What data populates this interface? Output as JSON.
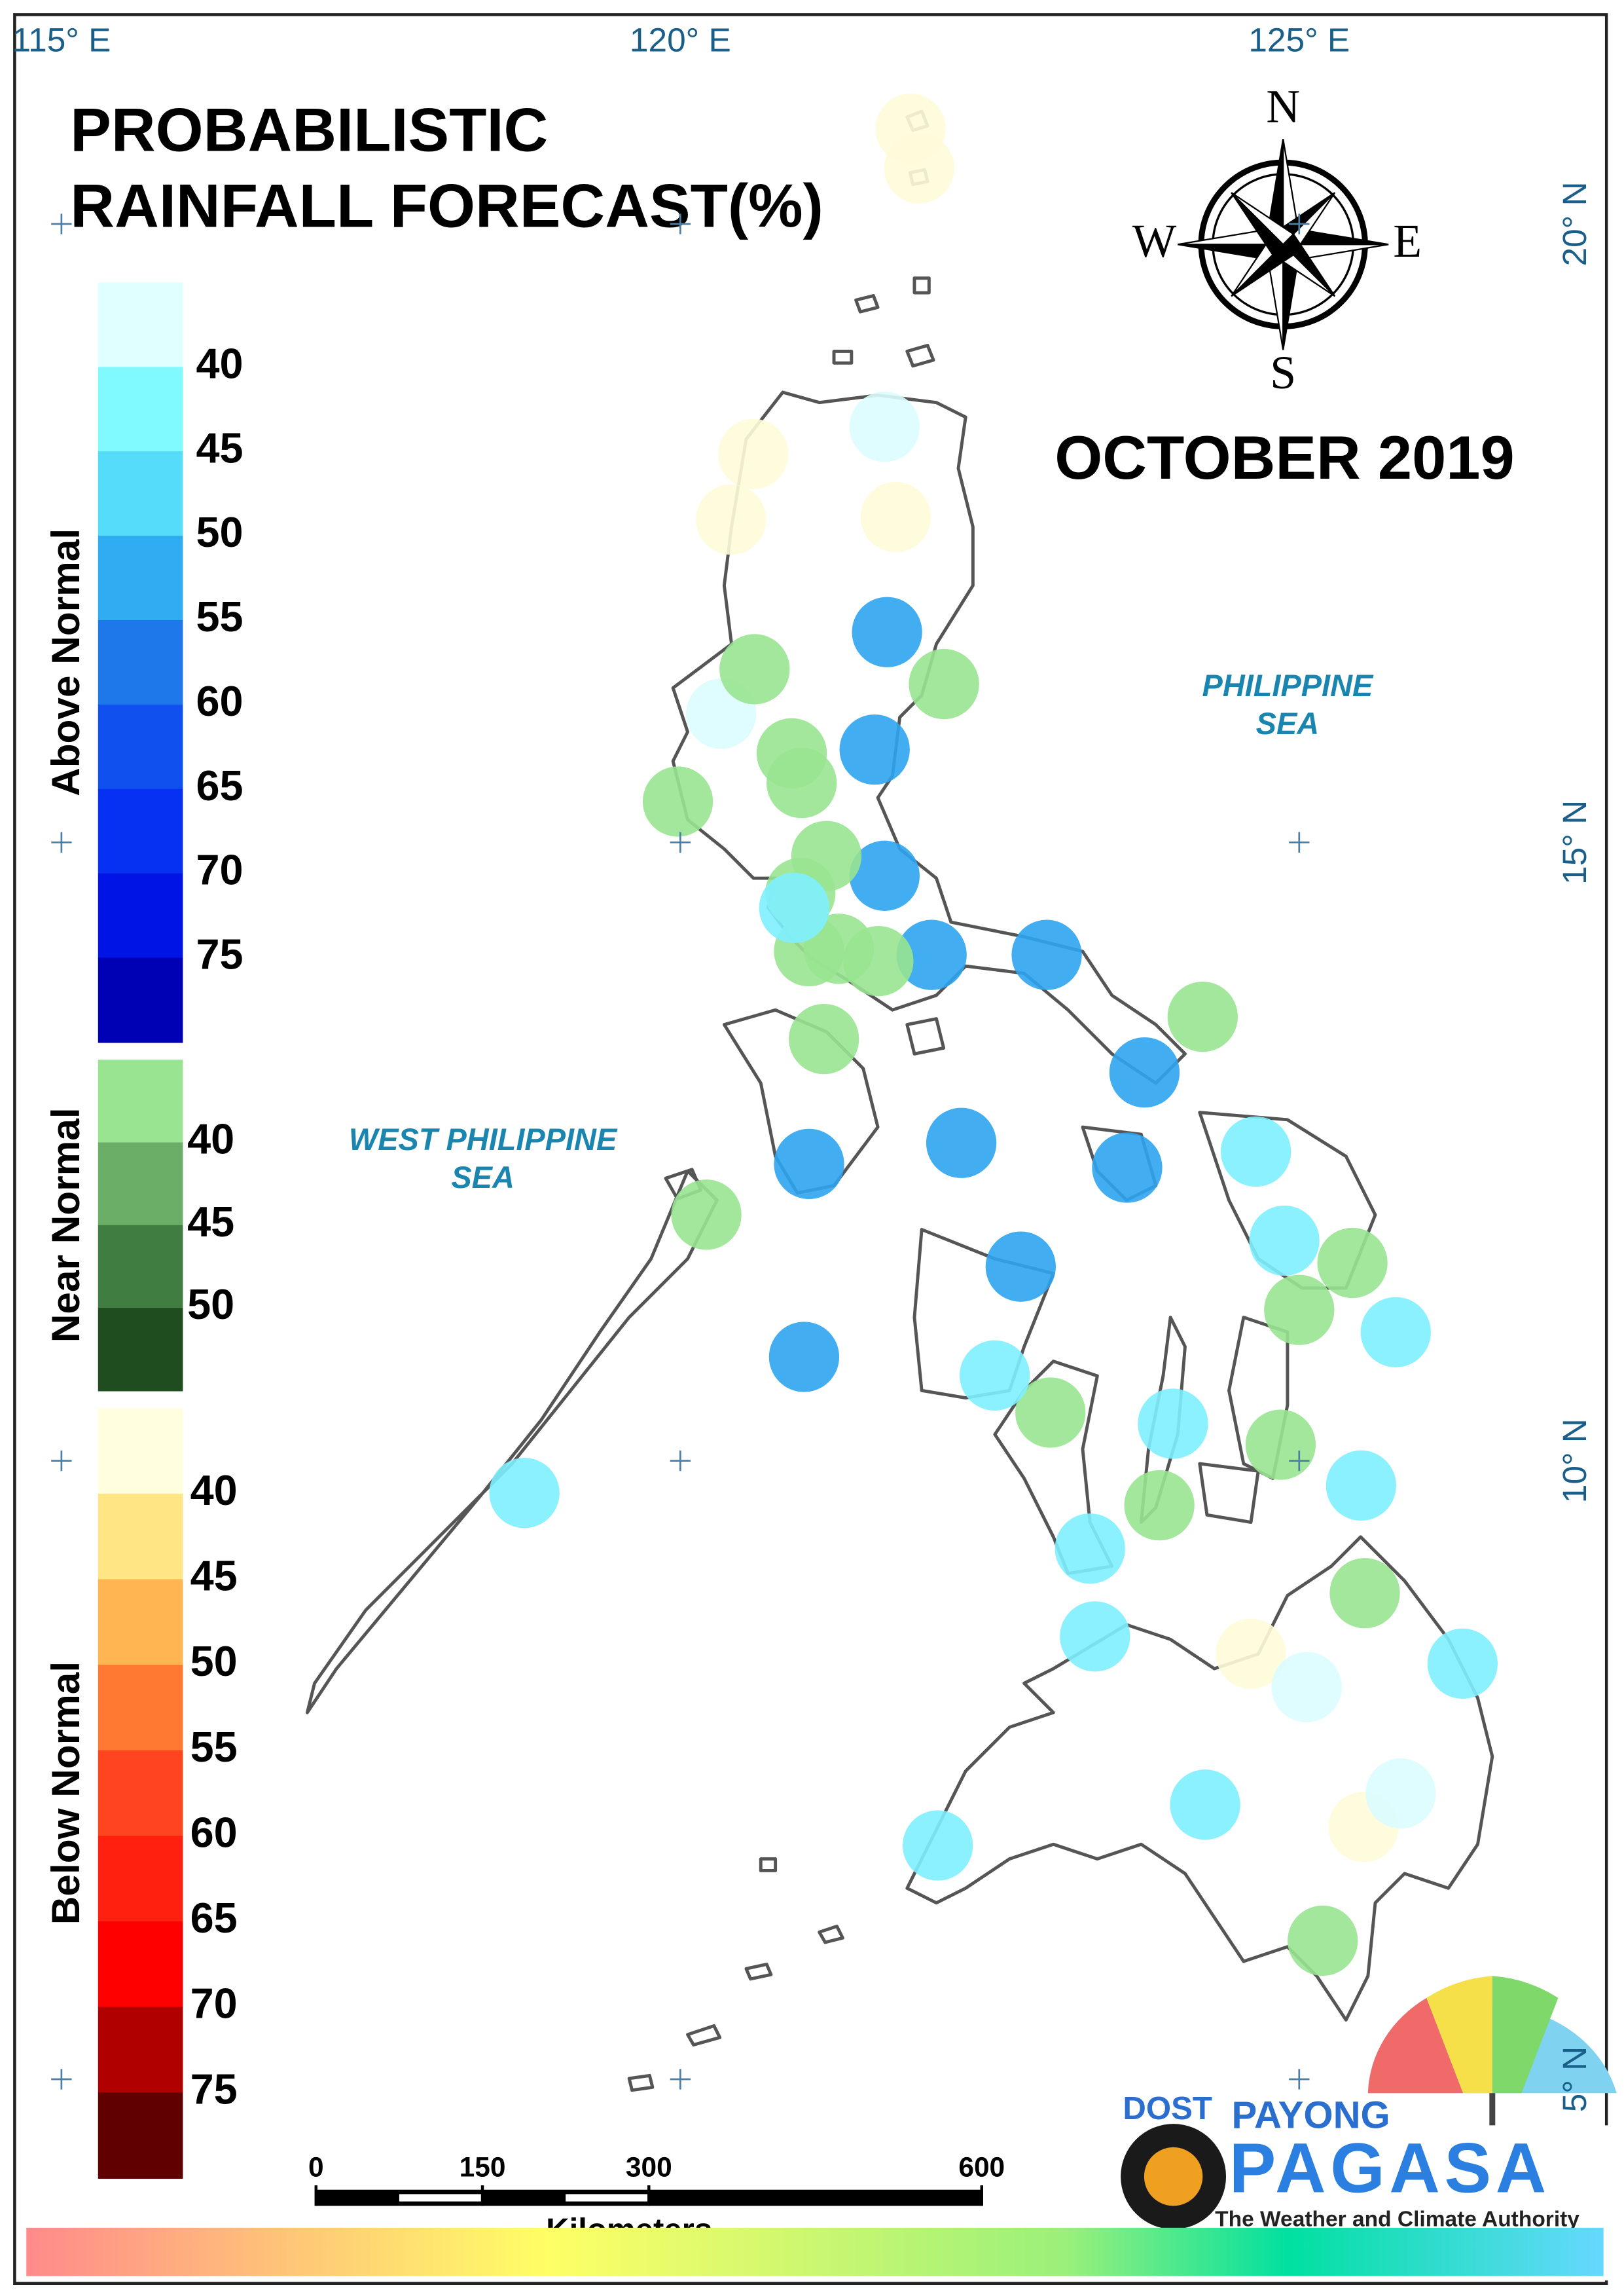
{
  "title": [
    "PROBABILISTIC",
    "RAINFALL FORECAST(%)"
  ],
  "period": "OCTOBER  2019",
  "compass": [
    "N",
    "E",
    "S",
    "W"
  ],
  "seas": [
    {
      "lines": [
        "PHILIPPINE",
        "SEA"
      ]
    },
    {
      "lines": [
        "WEST PHILIPPINE",
        "SEA"
      ]
    }
  ],
  "map": {
    "lon_ticks": [
      {
        "value": 115,
        "label": "115° E"
      },
      {
        "value": 120,
        "label": "120° E"
      },
      {
        "value": 125,
        "label": "125° E"
      }
    ],
    "lat_ticks": [
      {
        "value": 20,
        "label": "20° N"
      },
      {
        "value": 15,
        "label": "15° N"
      },
      {
        "value": 10,
        "label": "10° N"
      },
      {
        "value": 5,
        "label": "5° N"
      }
    ]
  },
  "legend": [
    {
      "title": "Above Normal",
      "colors": [
        "#e0ffff",
        "#80faff",
        "#55dcfa",
        "#30acf2",
        "#1e78ea",
        "#1050ee",
        "#0630f2",
        "#0014e6",
        "#0000b4"
      ],
      "labels": [
        40,
        45,
        50,
        55,
        60,
        65,
        70,
        75
      ]
    },
    {
      "title": "Near Normal",
      "colors": [
        "#98e490",
        "#6aae68",
        "#3f7d40",
        "#1f4d20"
      ],
      "labels": [
        40,
        45,
        50
      ]
    },
    {
      "title": "Below Normal",
      "colors": [
        "#ffffe0",
        "#ffe584",
        "#ffb652",
        "#ff7a30",
        "#ff4420",
        "#ff2010",
        "#ff0000",
        "#b00000",
        "#600000"
      ],
      "labels": [
        40,
        45,
        50,
        55,
        60,
        65,
        70,
        75
      ]
    }
  ],
  "stations": [
    {
      "color": "#fffbd9",
      "points": [
        [
          121.86,
          20.77
        ],
        [
          121.93,
          20.45
        ],
        [
          120.59,
          18.14
        ],
        [
          120.41,
          17.61
        ],
        [
          121.74,
          17.63
        ],
        [
          124.61,
          8.44
        ],
        [
          125.52,
          7.04
        ]
      ]
    },
    {
      "color": "#dcfcff",
      "points": [
        [
          121.65,
          18.36
        ],
        [
          120.33,
          16.04
        ],
        [
          125.06,
          8.17
        ],
        [
          125.82,
          7.31
        ]
      ]
    },
    {
      "color": "#2ea4ee",
      "points": [
        [
          121.67,
          16.7
        ],
        [
          121.57,
          15.75
        ],
        [
          121.65,
          14.73
        ],
        [
          122.03,
          14.09
        ],
        [
          122.96,
          14.09
        ],
        [
          123.75,
          13.14
        ],
        [
          121.04,
          12.4
        ],
        [
          122.27,
          12.57
        ],
        [
          123.61,
          12.37
        ],
        [
          122.75,
          11.57
        ],
        [
          121.0,
          10.84
        ]
      ]
    },
    {
      "color": "#98e490",
      "points": [
        [
          120.6,
          16.4
        ],
        [
          122.13,
          16.28
        ],
        [
          120.9,
          15.72
        ],
        [
          120.98,
          15.48
        ],
        [
          119.98,
          15.33
        ],
        [
          121.18,
          14.89
        ],
        [
          120.97,
          14.59
        ],
        [
          121.04,
          14.12
        ],
        [
          121.28,
          14.14
        ],
        [
          121.6,
          14.04
        ],
        [
          121.16,
          13.41
        ],
        [
          124.22,
          13.59
        ],
        [
          120.21,
          11.99
        ],
        [
          125.43,
          11.6
        ],
        [
          125.0,
          11.22
        ],
        [
          122.99,
          10.39
        ],
        [
          124.85,
          10.13
        ],
        [
          123.87,
          9.64
        ],
        [
          125.53,
          8.93
        ],
        [
          125.19,
          6.12
        ]
      ]
    },
    {
      "color": "#80f0ff",
      "points": [
        [
          120.92,
          14.47
        ],
        [
          124.65,
          12.5
        ],
        [
          124.88,
          11.78
        ],
        [
          125.78,
          11.04
        ],
        [
          122.54,
          10.69
        ],
        [
          123.98,
          10.3
        ],
        [
          118.74,
          9.74
        ],
        [
          125.5,
          9.8
        ],
        [
          123.31,
          9.29
        ],
        [
          123.35,
          8.58
        ],
        [
          126.32,
          8.36
        ],
        [
          124.24,
          7.22
        ],
        [
          122.08,
          6.89
        ]
      ]
    }
  ],
  "scale": {
    "ticks": [
      0,
      150,
      300,
      600
    ],
    "unit": "Kilometers"
  },
  "logo": {
    "agency": "DOST",
    "name_top": "PAYONG",
    "name": "PAGASA",
    "tagline": "The Weather and Climate Authority"
  }
}
